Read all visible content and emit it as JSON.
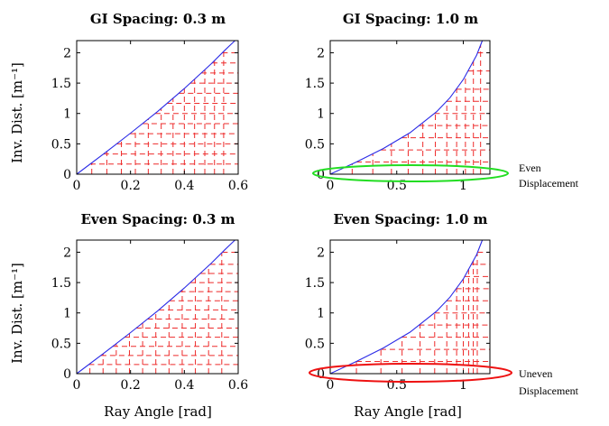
{
  "ylabel": "Inv. Dist. [m⁻¹]",
  "xlabel": "Ray Angle [rad]",
  "annotations": [
    {
      "lines": [
        "Even",
        "Displacement"
      ],
      "color": "#22dd22"
    },
    {
      "lines": [
        "Uneven",
        "Displacement"
      ],
      "color": "#ee1111"
    }
  ],
  "colors": {
    "curve": "#2a2ae6",
    "grid": "#ee2b2b",
    "axis": "#000000"
  },
  "chart_data": [
    {
      "type": "line",
      "title": "GI Spacing: 0.3 m",
      "spacing_m": 0.3,
      "xlim": [
        0,
        0.6
      ],
      "ylim": [
        0,
        2.2
      ],
      "xticks": [
        0,
        0.2,
        0.4,
        0.6
      ],
      "yticks": [
        0,
        0.5,
        1,
        1.5,
        2
      ],
      "series": [
        {
          "x": [
            0,
            0.1,
            0.2,
            0.3,
            0.4,
            0.5,
            0.55,
            0.588
          ],
          "y": [
            0,
            0.333,
            0.676,
            1.03,
            1.41,
            1.82,
            2.04,
            2.2
          ]
        }
      ],
      "x_grid": [
        0.056,
        0.112,
        0.166,
        0.218,
        0.266,
        0.314,
        0.358,
        0.4,
        0.438,
        0.476,
        0.512,
        0.546
      ],
      "y_grid": [
        0.167,
        0.333,
        0.5,
        0.667,
        0.833,
        1.0,
        1.167,
        1.333,
        1.5,
        1.667,
        1.833,
        2.0
      ]
    },
    {
      "type": "line",
      "title": "GI Spacing: 1.0 m",
      "spacing_m": 1.0,
      "xlim": [
        0,
        1.2
      ],
      "ylim": [
        0,
        2.2
      ],
      "xticks": [
        0,
        0.5,
        1
      ],
      "yticks": [
        0,
        0.5,
        1,
        1.5,
        2
      ],
      "series": [
        {
          "x": [
            0,
            0.2,
            0.4,
            0.6,
            0.8,
            0.9,
            1.0,
            1.1,
            1.143
          ],
          "y": [
            0,
            0.203,
            0.423,
            0.684,
            1.03,
            1.26,
            1.56,
            1.96,
            2.2
          ]
        }
      ],
      "x_grid": [
        0.165,
        0.32,
        0.46,
        0.586,
        0.696,
        0.79,
        0.876,
        0.95,
        1.016,
        1.076,
        1.13
      ],
      "y_grid": [
        0.2,
        0.4,
        0.6,
        0.8,
        1.0,
        1.2,
        1.4,
        1.7,
        2.0
      ]
    },
    {
      "type": "line",
      "title": "Even Spacing: 0.3 m",
      "spacing_m": 0.3,
      "xlim": [
        0,
        0.6
      ],
      "ylim": [
        0,
        2.2
      ],
      "xticks": [
        0,
        0.2,
        0.4,
        0.6
      ],
      "yticks": [
        0,
        0.5,
        1,
        1.5,
        2
      ],
      "series": [
        {
          "x": [
            0,
            0.1,
            0.2,
            0.3,
            0.4,
            0.5,
            0.55,
            0.588
          ],
          "y": [
            0,
            0.333,
            0.676,
            1.03,
            1.41,
            1.82,
            2.04,
            2.2
          ]
        }
      ],
      "x_grid": [
        0.049,
        0.098,
        0.147,
        0.196,
        0.245,
        0.294,
        0.343,
        0.392,
        0.441,
        0.49,
        0.539
      ],
      "y_grid": [
        0.15,
        0.3,
        0.45,
        0.6,
        0.75,
        0.9,
        1.05,
        1.2,
        1.35,
        1.5,
        1.65,
        1.8,
        2.0
      ]
    },
    {
      "type": "line",
      "title": "Even Spacing: 1.0 m",
      "spacing_m": 1.0,
      "xlim": [
        0,
        1.2
      ],
      "ylim": [
        0,
        2.2
      ],
      "xticks": [
        0,
        0.5,
        1
      ],
      "yticks": [
        0,
        0.5,
        1,
        1.5,
        2
      ],
      "series": [
        {
          "x": [
            0,
            0.2,
            0.4,
            0.6,
            0.8,
            0.9,
            1.0,
            1.1,
            1.143
          ],
          "y": [
            0,
            0.203,
            0.423,
            0.684,
            1.03,
            1.26,
            1.56,
            1.96,
            2.2
          ]
        }
      ],
      "x_grid": [
        0.197,
        0.381,
        0.54,
        0.675,
        0.785,
        0.876,
        0.95,
        1.0,
        1.04,
        1.075,
        1.105
      ],
      "y_grid": [
        0.2,
        0.4,
        0.6,
        0.8,
        1.0,
        1.2,
        1.4,
        1.6,
        1.8,
        2.0
      ]
    }
  ]
}
